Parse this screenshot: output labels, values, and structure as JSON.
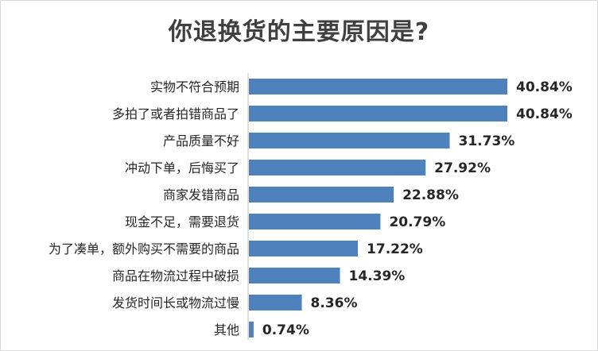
{
  "chart_data": {
    "type": "bar",
    "orientation": "horizontal",
    "title": "你退换货的主要原因是?",
    "xlabel": "",
    "ylabel": "",
    "xlim": [
      0,
      42
    ],
    "grid": false,
    "legend": "none",
    "bar_color": "#4f81bd",
    "categories": [
      "实物不符合预期",
      "多拍了或者拍错商品了",
      "产品质量不好",
      "冲动下单，后悔买了",
      "商家发错商品",
      "现金不足，需要退货",
      "为了凑单，额外购买不需要的商品",
      "商品在物流过程中破损",
      "发货时间长或物流过慢",
      "其他"
    ],
    "values": [
      40.84,
      40.84,
      31.73,
      27.92,
      22.88,
      20.79,
      17.22,
      14.39,
      8.36,
      0.74
    ],
    "value_labels": [
      "40.84%",
      "40.84%",
      "31.73%",
      "27.92%",
      "22.88%",
      "20.79%",
      "17.22%",
      "14.39%",
      "8.36%",
      "0.74%"
    ]
  }
}
